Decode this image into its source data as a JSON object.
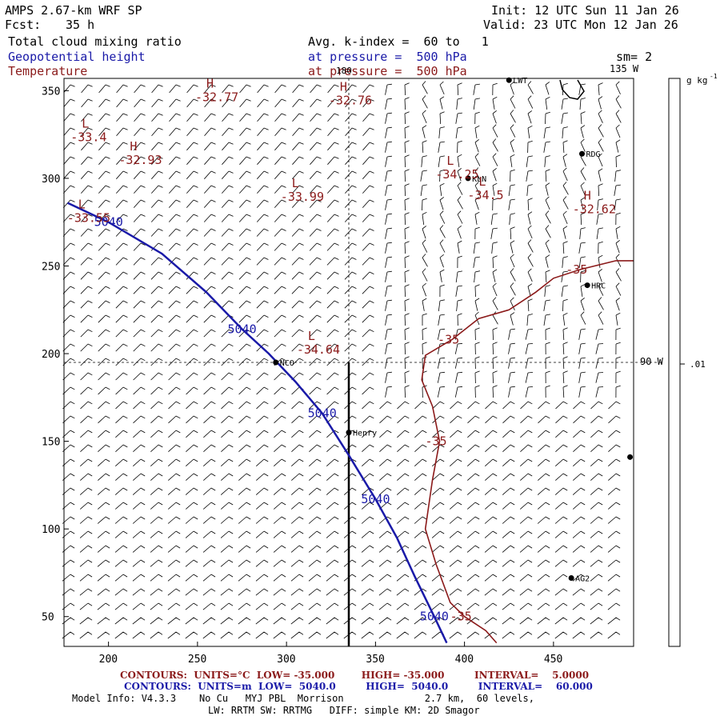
{
  "header": {
    "model": "AMPS 2.67-km WRF SP",
    "fcst_label": "Fcst:",
    "fcst_value": "35 h",
    "init": "Init: 12 UTC Sun 11 Jan 26",
    "valid": "Valid: 23 UTC Mon 12 Jan 26",
    "field1": "Total cloud mixing ratio",
    "field2": "Geopotential height",
    "field3": "Temperature",
    "avg": "Avg. k-index =  60 to   1",
    "pressure1": "at pressure =  500 hPa",
    "pressure2": "at pressure =  500 hPa",
    "sm": "sm= 2"
  },
  "map_labels": {
    "lon_top": "180",
    "lon_135": "135 W",
    "lon_90": "90 W",
    "colorbar_unit": "g kg",
    "colorbar_unit_sup": "-1",
    "colorbar_tick": ".01",
    "stations": [
      "LWT",
      "RDG",
      "KLN",
      "HRC",
      "NCO",
      "Henry",
      "AG2"
    ],
    "extrema": [
      {
        "type": "H",
        "value": "-32.77",
        "x": 255,
        "y": 350
      },
      {
        "type": "H",
        "value": "-32.76",
        "x": 330,
        "y": 348
      },
      {
        "type": "L",
        "value": "-33.4",
        "x": 185,
        "y": 327
      },
      {
        "type": "H",
        "value": "-32.93",
        "x": 212,
        "y": 314
      },
      {
        "type": "L",
        "value": "-34.25",
        "x": 390,
        "y": 306
      },
      {
        "type": "L",
        "value": "-34.5",
        "x": 408,
        "y": 294
      },
      {
        "type": "L",
        "value": "-33.99",
        "x": 303,
        "y": 293
      },
      {
        "type": "H",
        "value": "-32.62",
        "x": 467,
        "y": 286
      },
      {
        "type": "L",
        "value": "-33.55",
        "x": 183,
        "y": 281
      },
      {
        "type": "L",
        "value": "-34.64",
        "x": 312,
        "y": 206
      }
    ]
  },
  "chart_data": {
    "type": "line",
    "xlim": [
      175,
      495
    ],
    "ylim": [
      33,
      357
    ],
    "xticks": [
      200,
      250,
      300,
      350,
      400,
      450
    ],
    "yticks": [
      50,
      100,
      150,
      200,
      250,
      300,
      350
    ],
    "series": [
      {
        "name": "5040",
        "color": "#1a1aa8",
        "labels": [
          "5040",
          "5040",
          "5040",
          "5040",
          "5040"
        ],
        "points": [
          [
            177,
            286
          ],
          [
            200,
            275
          ],
          [
            230,
            257
          ],
          [
            255,
            235
          ],
          [
            275,
            214
          ],
          [
            290,
            200
          ],
          [
            305,
            184
          ],
          [
            320,
            166
          ],
          [
            335,
            142
          ],
          [
            350,
            117
          ],
          [
            362,
            95
          ],
          [
            372,
            73
          ],
          [
            383,
            50
          ],
          [
            390,
            35
          ]
        ]
      },
      {
        "name": "-35",
        "color": "#8b1a1a",
        "labels": [
          "-35",
          "-35",
          "-35",
          "-35"
        ],
        "points": [
          [
            495,
            253
          ],
          [
            485,
            253
          ],
          [
            465,
            248
          ],
          [
            450,
            243
          ],
          [
            440,
            235
          ],
          [
            425,
            225
          ],
          [
            408,
            220
          ],
          [
            393,
            208
          ],
          [
            378,
            199
          ],
          [
            376,
            185
          ],
          [
            382,
            170
          ],
          [
            386,
            150
          ],
          [
            382,
            128
          ],
          [
            378,
            100
          ],
          [
            384,
            80
          ],
          [
            392,
            58
          ],
          [
            400,
            50
          ],
          [
            412,
            42
          ],
          [
            418,
            35
          ]
        ]
      }
    ],
    "stations": [
      {
        "name": "LWT",
        "x": 425,
        "y": 356
      },
      {
        "name": "RDG",
        "x": 466,
        "y": 314
      },
      {
        "name": "KLN",
        "x": 402,
        "y": 300
      },
      {
        "name": "HRC",
        "x": 469,
        "y": 239
      },
      {
        "name": "NCO",
        "x": 294,
        "y": 195
      },
      {
        "name": "Henry",
        "x": 335,
        "y": 155
      },
      {
        "name": "AG2",
        "x": 460,
        "y": 72
      },
      {
        "name": "",
        "x": 493,
        "y": 141
      }
    ],
    "grid_lines": {
      "vertical_x": 335,
      "horizontal_y": 195
    },
    "cross_section": {
      "x": 335,
      "y_from": 33,
      "y_to": 195
    }
  },
  "footer": {
    "line1_red": "CONTOURS:  UNITS=°C  LOW= -35.000        HIGH= -35.000         INTERVAL=    5.0000",
    "line2_blue": "CONTOURS:  UNITS=m  LOW=  5040.0         HIGH=  5040.0         INTERVAL=    60.000",
    "line3": "Model Info: V4.3.3    No Cu   MYJ PBL  Morrison              2.7 km,  60 levels,",
    "line4": "LW: RRTM SW: RRTMG   DIFF: simple KM: 2D Smagor"
  }
}
